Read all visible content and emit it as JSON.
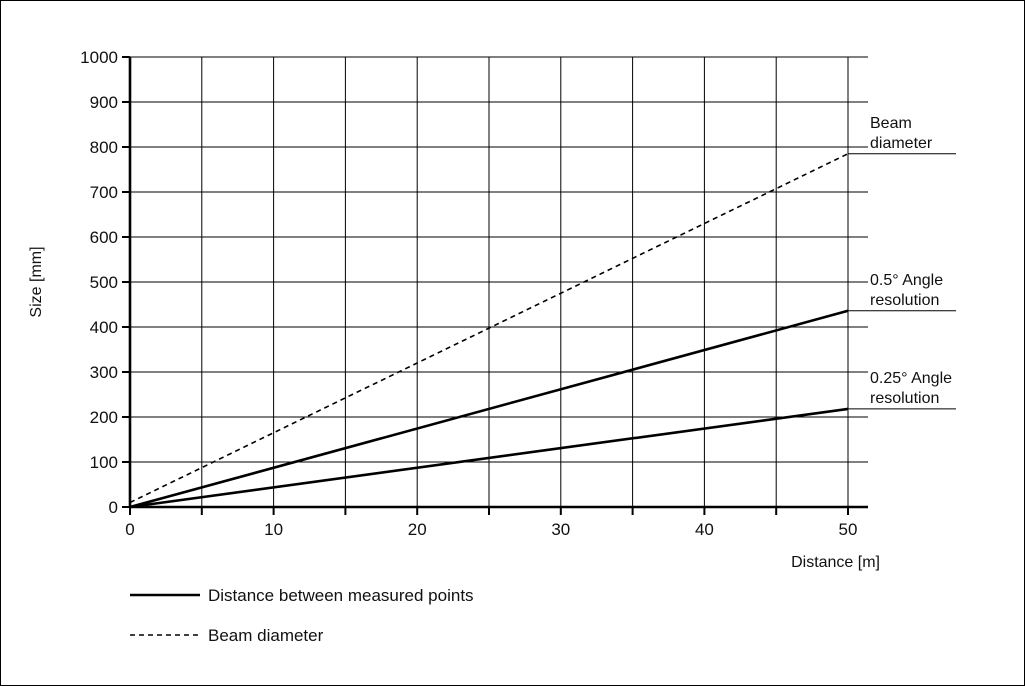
{
  "chart_data": {
    "type": "line",
    "xlabel": "Distance [m]",
    "ylabel": "Size [mm]",
    "xlim": [
      0,
      50
    ],
    "ylim": [
      0,
      1000
    ],
    "x_ticks": [
      0,
      10,
      20,
      30,
      40,
      50
    ],
    "x_gridlines": [
      0,
      5,
      10,
      15,
      20,
      25,
      30,
      35,
      40,
      45,
      50
    ],
    "y_ticks": [
      0,
      100,
      200,
      300,
      400,
      500,
      600,
      700,
      800,
      900,
      1000
    ],
    "grid": true,
    "series": [
      {
        "line": "dashed",
        "label": [
          "Beam",
          "diameter"
        ],
        "x": [
          0,
          50
        ],
        "y": [
          10,
          785
        ],
        "color": "#000000"
      },
      {
        "line": "solid",
        "label": [
          "0.5° Angle",
          "resolution"
        ],
        "x": [
          0,
          50
        ],
        "y": [
          0,
          436
        ],
        "color": "#000000"
      },
      {
        "line": "solid",
        "label": [
          "0.25° Angle",
          "resolution"
        ],
        "x": [
          0,
          50
        ],
        "y": [
          0,
          218
        ],
        "color": "#000000"
      }
    ],
    "legend": {
      "placement": "bottom-left",
      "items": [
        {
          "style": "solid",
          "label": "Distance between measured points"
        },
        {
          "style": "dashed",
          "label": "Beam diameter"
        }
      ]
    }
  }
}
